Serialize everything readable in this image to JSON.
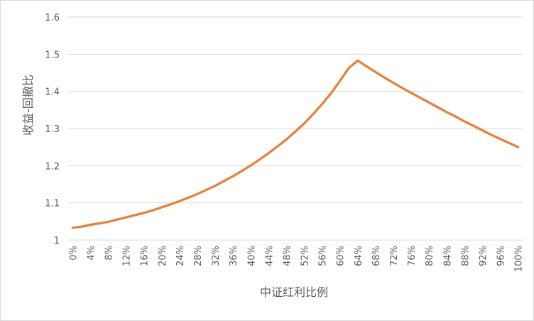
{
  "chart_data": {
    "type": "line",
    "title": "",
    "xlabel": "中证红利比例",
    "ylabel": "收益-回撤比",
    "ylim": [
      1,
      1.6
    ],
    "y_ticks": [
      "1",
      "1.1",
      "1.2",
      "1.3",
      "1.4",
      "1.5",
      "1.6"
    ],
    "grid": true,
    "legend": "none",
    "line_color": "#ED7D31",
    "grid_color": "#D9D9D9",
    "categories": [
      "0%",
      "2%",
      "4%",
      "6%",
      "8%",
      "10%",
      "12%",
      "14%",
      "16%",
      "18%",
      "20%",
      "22%",
      "24%",
      "26%",
      "28%",
      "30%",
      "32%",
      "34%",
      "36%",
      "38%",
      "40%",
      "42%",
      "44%",
      "46%",
      "48%",
      "50%",
      "52%",
      "54%",
      "56%",
      "58%",
      "60%",
      "62%",
      "64%",
      "66%",
      "68%",
      "70%",
      "72%",
      "74%",
      "76%",
      "78%",
      "80%",
      "82%",
      "84%",
      "86%",
      "88%",
      "90%",
      "92%",
      "94%",
      "96%",
      "98%",
      "100%"
    ],
    "x_tick_labels": [
      "0%",
      "4%",
      "8%",
      "12%",
      "16%",
      "20%",
      "24%",
      "28%",
      "32%",
      "36%",
      "40%",
      "44%",
      "48%",
      "52%",
      "56%",
      "60%",
      "64%",
      "68%",
      "72%",
      "76%",
      "80%",
      "84%",
      "88%",
      "92%",
      "96%",
      "100%"
    ],
    "values": [
      1.033,
      1.036,
      1.041,
      1.045,
      1.049,
      1.055,
      1.061,
      1.067,
      1.073,
      1.08,
      1.088,
      1.096,
      1.105,
      1.114,
      1.124,
      1.135,
      1.146,
      1.159,
      1.172,
      1.186,
      1.201,
      1.217,
      1.234,
      1.252,
      1.271,
      1.292,
      1.314,
      1.339,
      1.366,
      1.395,
      1.428,
      1.463,
      1.483,
      1.467,
      1.452,
      1.437,
      1.423,
      1.409,
      1.396,
      1.383,
      1.37,
      1.357,
      1.344,
      1.332,
      1.319,
      1.307,
      1.295,
      1.283,
      1.272,
      1.261,
      1.25
    ]
  }
}
